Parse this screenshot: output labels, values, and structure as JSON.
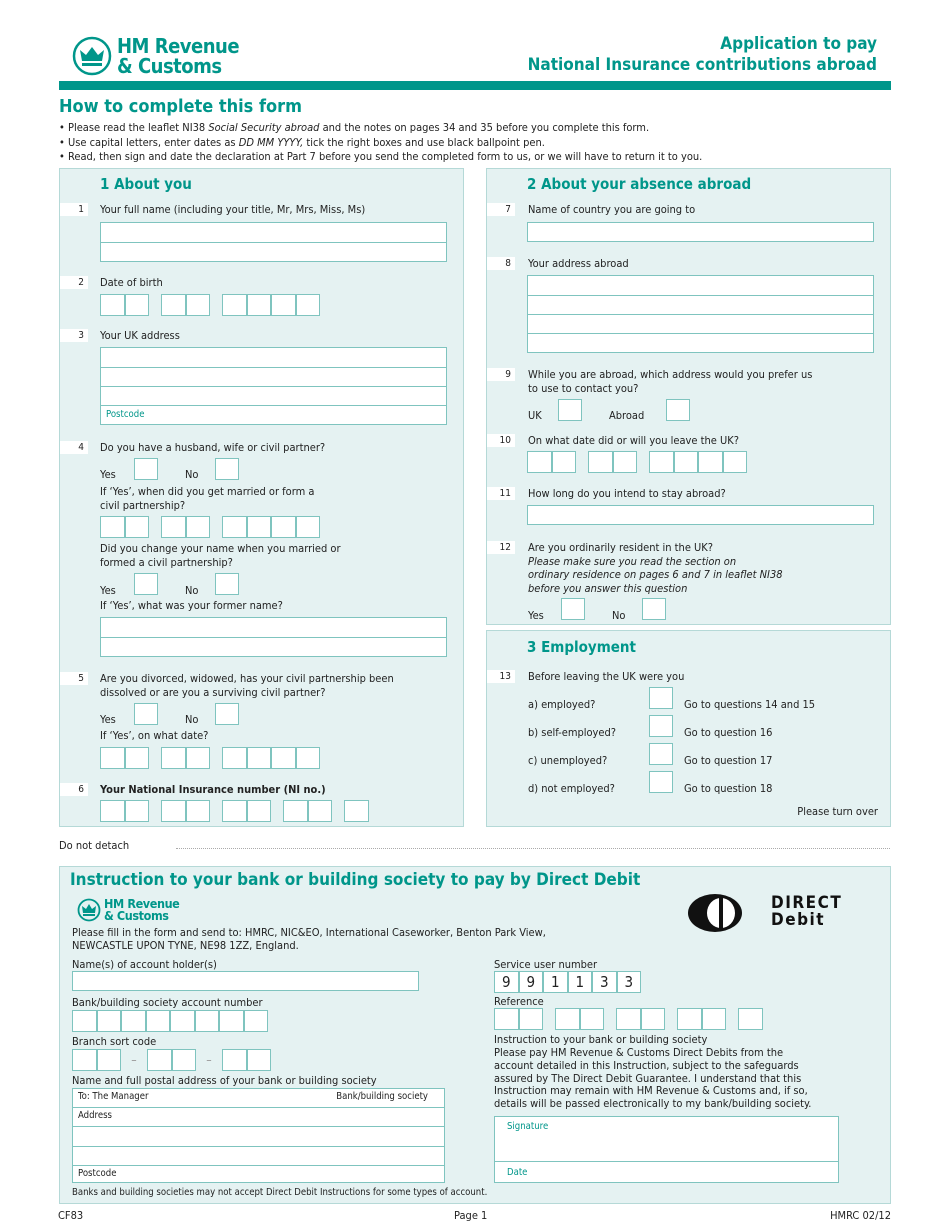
{
  "header": {
    "logo_line1": "HM Revenue",
    "logo_line2": "& Customs",
    "title_line1": "Application to pay",
    "title_line2": "National Insurance contributions abroad"
  },
  "intro": {
    "heading": "How to complete this form",
    "bullets": [
      {
        "pre": "Please read the leaflet NI38 ",
        "em": "Social Security abroad",
        "post": " and the notes on pages 34 and 35 before you complete this form."
      },
      {
        "pre": "Use capital letters, enter dates as ",
        "em": "DD MM YYYY,",
        "post": " tick the right boxes and use black ballpoint pen."
      },
      {
        "pre": "Read, then sign and date the declaration at Part 7 before you send the completed form to us, or we will have to return it to you.",
        "em": "",
        "post": ""
      }
    ]
  },
  "section1": {
    "title": "1 About you",
    "q1": {
      "num": "1",
      "label": "Your full name (including your title, Mr, Mrs, Miss, Ms)"
    },
    "q2": {
      "num": "2",
      "label": "Date of birth"
    },
    "q3": {
      "num": "3",
      "label": "Your UK address",
      "postcode": "Postcode"
    },
    "q4": {
      "num": "4",
      "label": "Do you have a husband, wife or civil partner?",
      "yes": "Yes",
      "no": "No",
      "if_yes_1": "If ‘Yes’, when did you get married or form a",
      "if_yes_2": "civil partnership?",
      "change_1": "Did you change your name when you married or",
      "change_2": "formed a civil partnership?",
      "yes2": "Yes",
      "no2": "No",
      "former": "If ‘Yes’, what was your former name?"
    },
    "q5": {
      "num": "5",
      "label_1": "Are you divorced, widowed, has your civil partnership been",
      "label_2": "dissolved or are you a surviving civil partner?",
      "yes": "Yes",
      "no": "No",
      "if_yes": "If ‘Yes’, on what date?"
    },
    "q6": {
      "num": "6",
      "label": "Your National Insurance number (NI no.)"
    }
  },
  "section2": {
    "title": "2 About your absence abroad",
    "q7": {
      "num": "7",
      "label": "Name of country you are going to"
    },
    "q8": {
      "num": "8",
      "label": "Your address abroad"
    },
    "q9": {
      "num": "9",
      "label_1": "While you are abroad, which address would you prefer us",
      "label_2": "to use to contact you?",
      "uk": "UK",
      "abroad": "Abroad"
    },
    "q10": {
      "num": "10",
      "label": "On what date did or will you leave the UK?"
    },
    "q11": {
      "num": "11",
      "label": "How long do you intend to stay abroad?"
    },
    "q12": {
      "num": "12",
      "label": "Are you ordinarily resident in the UK?",
      "note_1": "Please make sure you read the section on",
      "note_2": "ordinary residence on pages 6 and 7 in leaflet NI38",
      "note_3": "before you answer this question",
      "yes": "Yes",
      "no": "No"
    }
  },
  "section3": {
    "title": "3 Employment",
    "q13": {
      "num": "13",
      "label": "Before leaving the UK were you",
      "options": [
        {
          "label": "a) employed?",
          "goto": "Go to questions 14 and 15"
        },
        {
          "label": "b) self-employed?",
          "goto": "Go to question 16"
        },
        {
          "label": "c) unemployed?",
          "goto": "Go to question 17"
        },
        {
          "label": "d) not employed?",
          "goto": "Go to question 18"
        }
      ]
    },
    "turn_over": "Please turn over"
  },
  "detach": "Do not detach",
  "dd": {
    "title": "Instruction to your bank or building society to pay by Direct Debit",
    "logo_line1": "HM Revenue",
    "logo_line2": "& Customs",
    "dd_logo_1": "DIRECT",
    "dd_logo_2": "Debit",
    "send_1": "Please fill in the form and send to: HMRC, NIC&EO, International Caseworker, Benton Park View,",
    "send_2": "NEWCASTLE UPON TYNE, NE98 1ZZ, England.",
    "holder": "Name(s) of account holder(s)",
    "account": "Bank/building society account number",
    "sort": "Branch sort code",
    "bank_address": "Name and full postal address of your bank or building society",
    "to": "To: The Manager",
    "bank": "Bank/building society",
    "address": "Address",
    "postcode": "Postcode",
    "service_label": "Service user number",
    "service_digits": [
      "9",
      "9",
      "1",
      "1",
      "3",
      "3"
    ],
    "reference": "Reference",
    "instruction_heading": "Instruction to your bank or building society",
    "instruction": [
      "Please pay HM Revenue & Customs Direct Debits from the",
      "account detailed in this Instruction, subject to the safeguards",
      "assured by The Direct Debit Guarantee. I understand that this",
      "Instruction may remain with HM Revenue & Customs and, if so,",
      "details will be passed electronically to my bank/building society."
    ],
    "signature": "Signature",
    "date": "Date",
    "note": "Banks and building societies may not accept Direct Debit Instructions for some types of account."
  },
  "footer": {
    "form": "CF83",
    "page": "Page 1",
    "version": "HMRC 02/12"
  },
  "colors": {
    "accent": "#00968a",
    "panel": "#e5f2f2",
    "box_border": "#7fc4bf"
  }
}
